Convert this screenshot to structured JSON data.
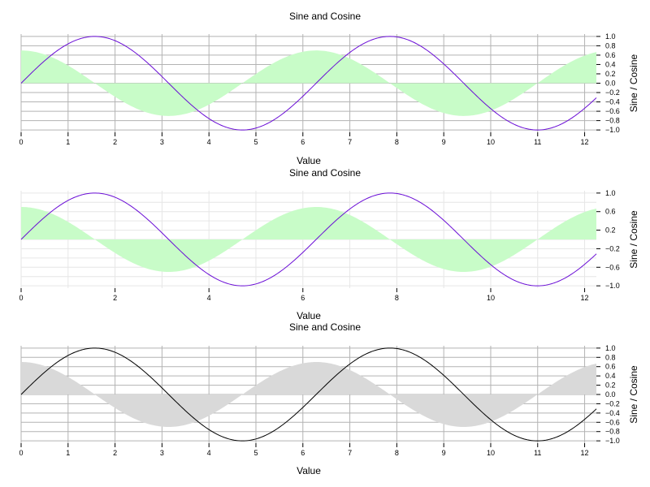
{
  "chart_data": [
    {
      "type": "line",
      "title": "Sine and Cosine",
      "xlabel": "Value",
      "ylabel": "Sine / Cosine",
      "xlim": [
        0,
        12.25
      ],
      "ylim": [
        -1.05,
        1.05
      ],
      "xticks": [
        0,
        1,
        2,
        3,
        4,
        5,
        6,
        7,
        8,
        9,
        10,
        11,
        12
      ],
      "yticks": [
        1.0,
        0.8,
        0.6,
        0.4,
        0.2,
        0.0,
        -0.2,
        -0.4,
        -0.6,
        -0.8,
        -1.0
      ],
      "ytick_labels": [
        "1.0",
        "0.8",
        "0.6",
        "0.4",
        "0.2",
        "0.0",
        "−0.2",
        "−0.4",
        "−0.6",
        "−0.8",
        "−1.0"
      ],
      "x_grid": [
        0,
        1,
        2,
        3,
        4,
        5,
        6,
        7,
        8,
        9,
        10,
        11,
        12
      ],
      "y_grid": [
        1.0,
        0.8,
        0.6,
        0.4,
        0.2,
        0.0,
        -0.2,
        -0.4,
        -0.6,
        -0.8,
        -1.0
      ],
      "grid_color": "#b3b3b3",
      "line_color": "#6a0dd6",
      "fill_color": "#c8fcc8",
      "series": [
        {
          "kind": "line",
          "function": "sin",
          "amplitude": 1.0
        },
        {
          "kind": "area",
          "function": "cos",
          "amplitude": 0.7
        }
      ]
    },
    {
      "type": "line",
      "title": "Sine and Cosine",
      "xlabel": "Value",
      "ylabel": "Sine / Cosine",
      "xlim": [
        0,
        12.25
      ],
      "ylim": [
        -1.05,
        1.05
      ],
      "xticks": [
        0,
        2,
        4,
        6,
        8,
        10,
        12
      ],
      "yticks": [
        1.0,
        0.6,
        0.2,
        -0.2,
        -0.6,
        -1.0
      ],
      "ytick_labels": [
        "1.0",
        "0.6",
        "0.2",
        "−0.2",
        "−0.6",
        "−1.0"
      ],
      "x_grid": [
        0,
        1,
        2,
        3,
        4,
        5,
        6,
        7,
        8,
        9,
        10,
        11,
        12
      ],
      "y_grid": [
        1.0,
        0.8,
        0.6,
        0.4,
        0.2,
        0.0,
        -0.2,
        -0.4,
        -0.6,
        -0.8,
        -1.0
      ],
      "grid_color": "#e6e6e6",
      "line_color": "#6a0dd6",
      "fill_color": "#c8fcc8",
      "series": [
        {
          "kind": "line",
          "function": "sin",
          "amplitude": 1.0
        },
        {
          "kind": "area",
          "function": "cos",
          "amplitude": 0.7
        }
      ]
    },
    {
      "type": "line",
      "title": "Sine and Cosine",
      "xlabel": "Value",
      "ylabel": "Sine / Cosine",
      "xlim": [
        0,
        12.25
      ],
      "ylim": [
        -1.05,
        1.05
      ],
      "xticks": [
        0,
        1,
        2,
        3,
        4,
        5,
        6,
        7,
        8,
        9,
        10,
        11,
        12
      ],
      "yticks": [
        1.0,
        0.8,
        0.6,
        0.4,
        0.2,
        0.0,
        -0.2,
        -0.4,
        -0.6,
        -0.8,
        -1.0
      ],
      "ytick_labels": [
        "1.0",
        "0.8",
        "0.6",
        "0.4",
        "0.2",
        "0.0",
        "−0.2",
        "−0.4",
        "−0.6",
        "−0.8",
        "−1.0"
      ],
      "x_grid": [
        0,
        1,
        2,
        3,
        4,
        5,
        6,
        7,
        8,
        9,
        10,
        11,
        12
      ],
      "y_grid": [
        1.0,
        0.8,
        0.6,
        0.4,
        0.2,
        0.0,
        -0.2,
        -0.4,
        -0.6,
        -0.8,
        -1.0
      ],
      "grid_color": "#b3b3b3",
      "line_color": "#000000",
      "fill_color": "#d9d9d9",
      "series": [
        {
          "kind": "line",
          "function": "sin",
          "amplitude": 1.0
        },
        {
          "kind": "area",
          "function": "cos",
          "amplitude": 0.7
        }
      ]
    }
  ]
}
